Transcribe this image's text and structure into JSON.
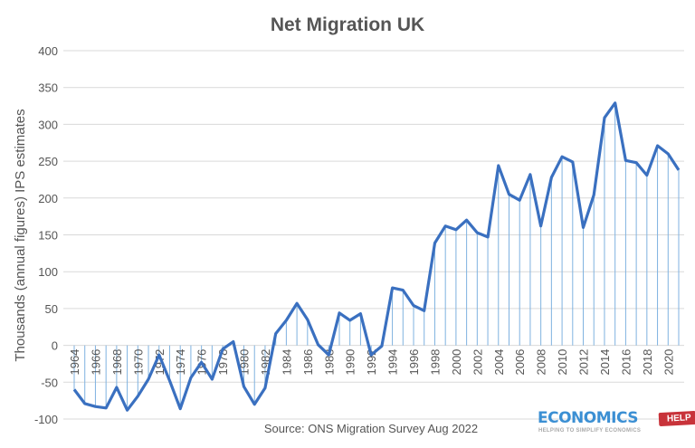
{
  "chart_data": {
    "type": "line",
    "title": "Net Migration UK",
    "ylabel": "Thousands (annual figures) IPS estimates",
    "xlabel": "",
    "source": "Source: ONS Migration Survey Aug 2022",
    "ylim": [
      -100,
      400
    ],
    "yticks": [
      -100,
      -50,
      0,
      50,
      100,
      150,
      200,
      250,
      300,
      350,
      400
    ],
    "grid": true,
    "drop_lines": true,
    "line_color": "#3a70c0",
    "drop_line_color": "#7fb2e0",
    "x": [
      1964,
      1965,
      1966,
      1967,
      1968,
      1969,
      1970,
      1971,
      1972,
      1973,
      1974,
      1975,
      1976,
      1977,
      1978,
      1979,
      1980,
      1981,
      1982,
      1983,
      1984,
      1985,
      1986,
      1987,
      1988,
      1989,
      1990,
      1991,
      1992,
      1993,
      1994,
      1995,
      1996,
      1997,
      1998,
      1999,
      2000,
      2001,
      2002,
      2003,
      2004,
      2005,
      2006,
      2007,
      2008,
      2009,
      2010,
      2011,
      2012,
      2013,
      2014,
      2015,
      2016,
      2017,
      2018,
      2019,
      2020,
      2021
    ],
    "xtick_labels": [
      "1964",
      "1966",
      "1968",
      "1970",
      "1972",
      "1974",
      "1976",
      "1978",
      "1980",
      "1982",
      "1984",
      "1986",
      "1988",
      "1990",
      "1992",
      "1994",
      "1996",
      "1998",
      "2000",
      "2002",
      "2004",
      "2006",
      "2008",
      "2010",
      "2012",
      "2014",
      "2016",
      "2018",
      "2020"
    ],
    "values": [
      -60,
      -79,
      -83,
      -85,
      -57,
      -88,
      -69,
      -46,
      -13,
      -48,
      -86,
      -44,
      -23,
      -46,
      -5,
      5,
      -56,
      -80,
      -58,
      16,
      34,
      57,
      35,
      1,
      -13,
      44,
      34,
      43,
      -13,
      -1,
      78,
      75,
      54,
      47,
      139,
      162,
      157,
      170,
      153,
      147,
      244,
      205,
      197,
      232,
      162,
      228,
      256,
      249,
      160,
      204,
      309,
      329,
      251,
      248,
      231,
      271,
      260,
      238
    ]
  },
  "logo": {
    "text": "ECONOMICS",
    "tag": "HELP",
    "tagline": "HELPING TO SIMPLIFY ECONOMICS"
  }
}
